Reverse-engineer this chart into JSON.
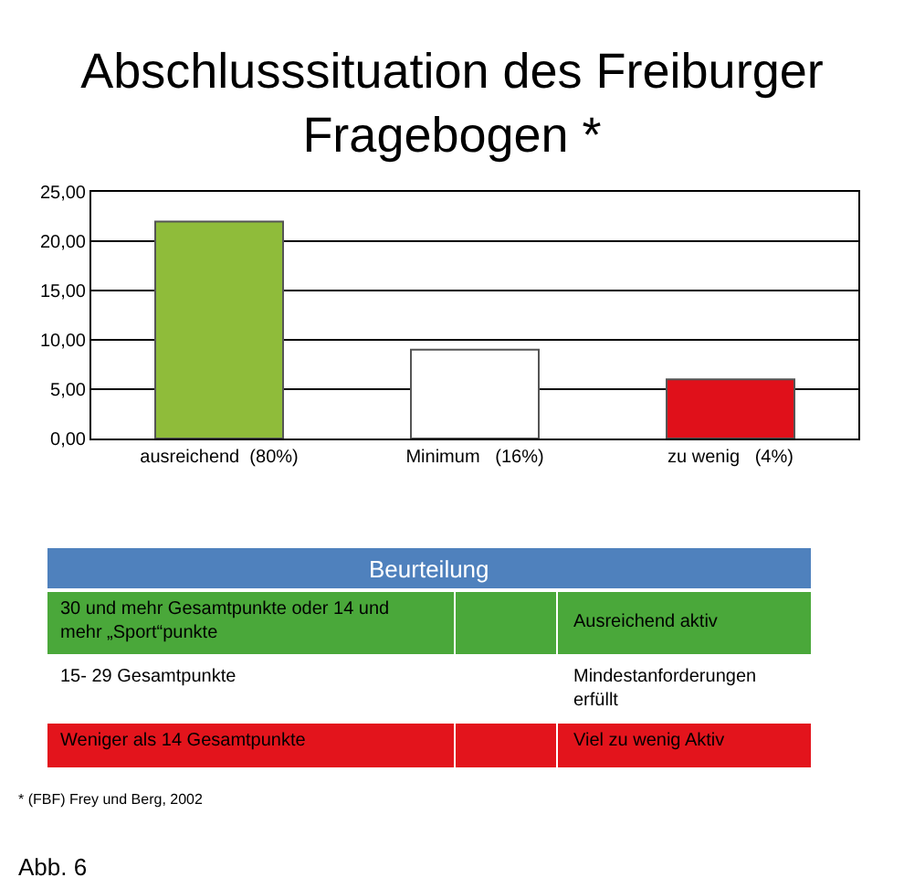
{
  "chart_data": {
    "type": "bar",
    "title": "Abschlusssituation des Freiburger\nFragebogen *",
    "categories": [
      "ausreichend  (80%)",
      "Minimum   (16%)",
      "zu wenig   (4%)"
    ],
    "values": [
      22,
      9,
      6
    ],
    "colors": [
      "#8fbc3a",
      "#ffffff",
      "#e0101a"
    ],
    "ylim": [
      0,
      25
    ],
    "yticks": [
      {
        "value": 0,
        "label": "0,00"
      },
      {
        "value": 5,
        "label": "5,00"
      },
      {
        "value": 10,
        "label": "10,00"
      },
      {
        "value": 15,
        "label": "15,00"
      },
      {
        "value": 20,
        "label": "20,00"
      },
      {
        "value": 25,
        "label": "25,00"
      }
    ],
    "grid": "y",
    "annotations": [
      "Beurteilung",
      "30 und mehr Gesamtpunkte oder 14 und\nmehr „Sport“punkte",
      "Ausreichend aktiv",
      "15- 29 Gesamtpunkte",
      "Mindestanforderungen\nerfüllt",
      "Weniger als 14 Gesamtpunkte",
      "Viel zu wenig Aktiv",
      "* (FBF) Frey und Berg, 2002",
      "Abb. 6"
    ]
  }
}
